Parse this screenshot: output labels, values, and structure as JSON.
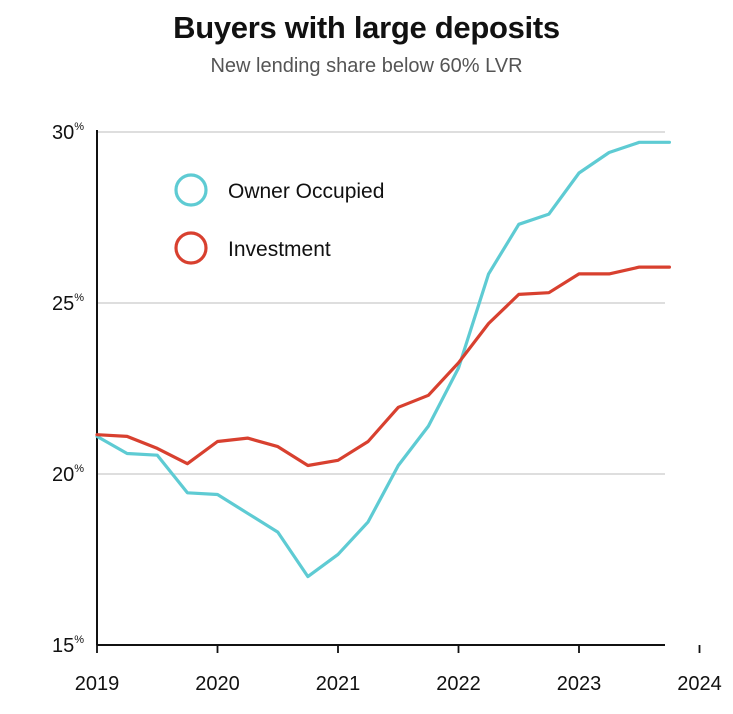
{
  "chart_data": {
    "type": "line",
    "title": "Buyers with large deposits",
    "subtitle": "New lending share below 60% LVR",
    "xlabel": "",
    "ylabel": "",
    "xlim": [
      2019,
      2024
    ],
    "ylim": [
      15,
      30
    ],
    "x_ticks": [
      "2019",
      "2020",
      "2021",
      "2022",
      "2023",
      "2024"
    ],
    "y_ticks": [
      {
        "value": 30,
        "label": "30",
        "unit": "%"
      },
      {
        "value": 25,
        "label": "25",
        "unit": "%"
      },
      {
        "value": 20,
        "label": "20",
        "unit": "%"
      },
      {
        "value": 15,
        "label": "15",
        "unit": "%"
      }
    ],
    "grid": "horizontal",
    "legend_position": "top-left",
    "x": [
      2019.0,
      2019.25,
      2019.5,
      2019.75,
      2020.0,
      2020.25,
      2020.5,
      2020.75,
      2021.0,
      2021.25,
      2021.5,
      2021.75,
      2022.0,
      2022.25,
      2022.5,
      2022.75,
      2023.0,
      2023.25,
      2023.5,
      2023.75
    ],
    "series": [
      {
        "name": "Owner Occupied",
        "color": "#5ecbd3",
        "values": [
          21.1,
          20.6,
          20.55,
          19.45,
          19.4,
          18.85,
          18.3,
          17.0,
          17.65,
          18.6,
          20.25,
          21.4,
          23.1,
          25.85,
          27.3,
          27.6,
          28.8,
          29.4,
          29.7,
          29.7
        ]
      },
      {
        "name": "Investment",
        "color": "#d8402f",
        "values": [
          21.15,
          21.1,
          20.75,
          20.3,
          20.95,
          21.05,
          20.8,
          20.25,
          20.4,
          20.95,
          21.95,
          22.3,
          23.25,
          24.4,
          25.25,
          25.3,
          25.85,
          25.85,
          26.05,
          26.05
        ]
      }
    ]
  }
}
